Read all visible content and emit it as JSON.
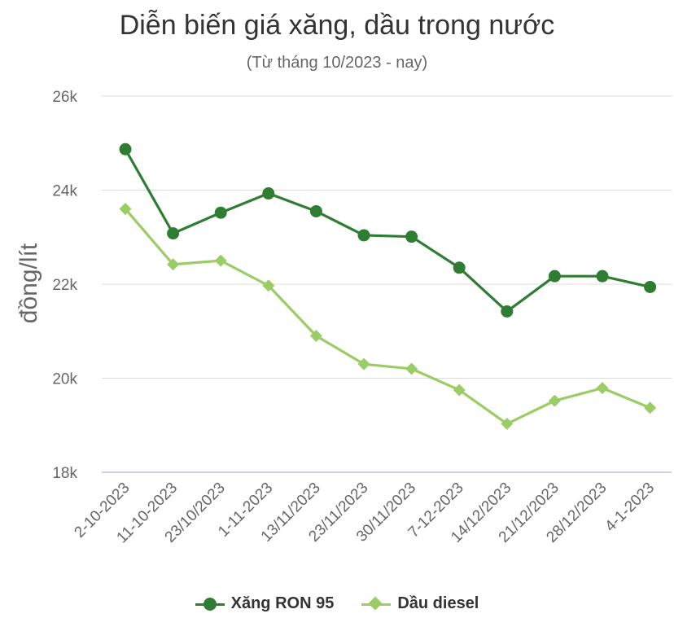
{
  "chart_data": {
    "type": "line",
    "title": "Diễn biến giá xăng, dầu trong nước",
    "subtitle": "(Từ tháng 10/2023 - nay)",
    "ylabel": "đồng/lít",
    "ylim": [
      18000,
      26000
    ],
    "yticks": [
      {
        "value": 18000,
        "label": "18k"
      },
      {
        "value": 20000,
        "label": "20k"
      },
      {
        "value": 22000,
        "label": "22k"
      },
      {
        "value": 24000,
        "label": "24k"
      },
      {
        "value": 26000,
        "label": "26k"
      }
    ],
    "categories": [
      "2-10-2023",
      "11-10-2023",
      "23/10/2023",
      "1-11-2023",
      "13/11/2023",
      "23/11/2023",
      "30/11/2023",
      "7-12-2023",
      "14/12/2023",
      "21/12/2023",
      "28/12/2023",
      "4-1-2023"
    ],
    "series": [
      {
        "name": "Xăng RON 95",
        "color": "#2e7d32",
        "marker": "circle",
        "values": [
          24870,
          23080,
          23520,
          23930,
          23550,
          23040,
          23010,
          22350,
          21420,
          22170,
          22170,
          21940
        ]
      },
      {
        "name": "Dầu diesel",
        "color": "#9ccc65",
        "marker": "diamond",
        "values": [
          23600,
          22420,
          22500,
          21970,
          20900,
          20300,
          20200,
          19750,
          19030,
          19520,
          19790,
          19370
        ]
      }
    ],
    "grid": true,
    "legend": "bottom"
  }
}
